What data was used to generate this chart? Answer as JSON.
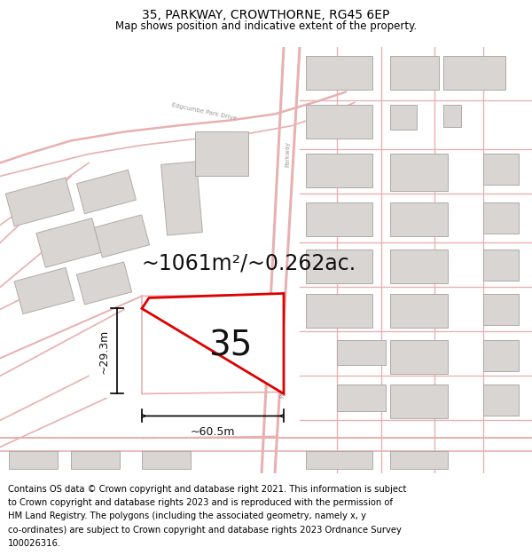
{
  "title": "35, PARKWAY, CROWTHORNE, RG45 6EP",
  "subtitle": "Map shows position and indicative extent of the property.",
  "footer_lines": [
    "Contains OS data © Crown copyright and database right 2021. This information is subject",
    "to Crown copyright and database rights 2023 and is reproduced with the permission of",
    "HM Land Registry. The polygons (including the associated geometry, namely x, y",
    "co-ordinates) are subject to Crown copyright and database rights 2023 Ordnance Survey",
    "100026316."
  ],
  "map_bg": "#f5f3f2",
  "road_color": "#e8b0b0",
  "road_lw": 1.0,
  "building_fill": "#d8d5d2",
  "building_edge": "#b0aba8",
  "plot_fill": "#ffffff",
  "plot_edge": "#dd0000",
  "plot_edge_lw": 2.0,
  "area_text": "~1061m²/~0.262ac.",
  "plot_number": "35",
  "width_label": "~60.5m",
  "height_label": "~29.3m",
  "title_fontsize": 10,
  "subtitle_fontsize": 8.5,
  "footer_fontsize": 7.2,
  "area_fontsize": 17,
  "number_fontsize": 28,
  "dim_fontsize": 9
}
